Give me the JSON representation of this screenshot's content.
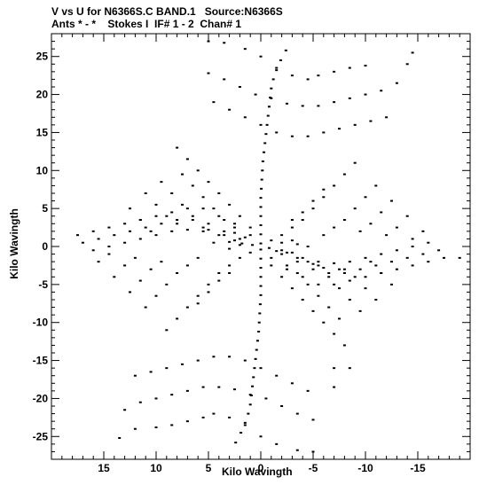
{
  "title_line1": "V vs U for N6366S.C BAND.1   Source:N6366S",
  "title_line2": "Ants * - *    Stokes I  IF# 1 - 2  Chan# 1",
  "chart_data": {
    "type": "scatter",
    "xlabel": "Kilo Wavingth",
    "ylabel": "Kilo Wavingth",
    "xlim": [
      20,
      -20
    ],
    "ylim": [
      -28,
      28
    ],
    "xticks": [
      15,
      10,
      5,
      0,
      -5,
      -10,
      -15
    ],
    "xtick_labels": [
      "15",
      "10",
      "5",
      "0",
      "-5",
      "-10",
      "-15"
    ],
    "yticks": [
      -25,
      -20,
      -15,
      -10,
      -5,
      0,
      5,
      10,
      15,
      20,
      25
    ],
    "ytick_labels": [
      "-25",
      "-20",
      "-15",
      "-10",
      "-5",
      "0",
      "5",
      "10",
      "15",
      "20",
      "25"
    ],
    "grid": false,
    "marker_color": "#000000",
    "points": [
      [
        -2.4,
        25.8
      ],
      [
        -1.9,
        24.5
      ],
      [
        -1.5,
        23.2
      ],
      [
        -1.2,
        22.0
      ],
      [
        -1.0,
        20.8
      ],
      [
        -0.9,
        19.6
      ],
      [
        -0.8,
        18.4
      ],
      [
        -0.7,
        17.2
      ],
      [
        -0.6,
        16.0
      ],
      [
        -0.5,
        14.8
      ],
      [
        -0.4,
        13.6
      ],
      [
        -0.3,
        12.4
      ],
      [
        -0.2,
        11.2
      ],
      [
        -0.15,
        10.0
      ],
      [
        -0.1,
        8.8
      ],
      [
        -0.05,
        7.6
      ],
      [
        0,
        6.4
      ],
      [
        0,
        5.2
      ],
      [
        0,
        4.0
      ],
      [
        0,
        2.8
      ],
      [
        0,
        1.6
      ],
      [
        0,
        0.4
      ],
      [
        2.4,
        -25.8
      ],
      [
        1.9,
        -24.5
      ],
      [
        1.5,
        -23.2
      ],
      [
        1.2,
        -22.0
      ],
      [
        1.0,
        -20.8
      ],
      [
        0.9,
        -19.6
      ],
      [
        0.8,
        -18.4
      ],
      [
        0.7,
        -17.2
      ],
      [
        0.6,
        -16.0
      ],
      [
        0.5,
        -14.8
      ],
      [
        0.4,
        -13.6
      ],
      [
        0.3,
        -12.4
      ],
      [
        0.2,
        -11.2
      ],
      [
        0.15,
        -10.0
      ],
      [
        0.1,
        -8.8
      ],
      [
        0.05,
        -7.6
      ],
      [
        0,
        -6.4
      ],
      [
        0,
        -5.2
      ],
      [
        0,
        -4.0
      ],
      [
        0,
        -2.8
      ],
      [
        0,
        -1.6
      ],
      [
        0,
        -0.4
      ],
      [
        5,
        27
      ],
      [
        3.5,
        26.8
      ],
      [
        1.5,
        26
      ],
      [
        0,
        25
      ],
      [
        -1.5,
        23.5
      ],
      [
        -3,
        22.5
      ],
      [
        -4.5,
        22
      ],
      [
        -5.5,
        22.5
      ],
      [
        -7,
        23
      ],
      [
        -8.5,
        23.5
      ],
      [
        -10,
        23.8
      ],
      [
        5,
        22.8
      ],
      [
        3.5,
        22
      ],
      [
        2,
        21
      ],
      [
        0.5,
        20
      ],
      [
        -1,
        19.5
      ],
      [
        -2.5,
        18.8
      ],
      [
        -4,
        18.5
      ],
      [
        -5.5,
        18.5
      ],
      [
        -7,
        19
      ],
      [
        -8.5,
        19.5
      ],
      [
        -10,
        20
      ],
      [
        -11.5,
        20.5
      ],
      [
        -13,
        21.5
      ],
      [
        -14,
        24
      ],
      [
        -14.5,
        25.5
      ],
      [
        4.5,
        19
      ],
      [
        3,
        18
      ],
      [
        1.5,
        17
      ],
      [
        0,
        16
      ],
      [
        -1.5,
        15
      ],
      [
        -3,
        14.5
      ],
      [
        -4.5,
        14.5
      ],
      [
        -6,
        15
      ],
      [
        -7.5,
        15.5
      ],
      [
        -9,
        16
      ],
      [
        -10.5,
        16.5
      ],
      [
        -12,
        17
      ],
      [
        -5,
        -27
      ],
      [
        -3.5,
        -26.8
      ],
      [
        -1.5,
        -26
      ],
      [
        0,
        -25
      ],
      [
        1.5,
        -23.5
      ],
      [
        3,
        -22.5
      ],
      [
        4.5,
        -22
      ],
      [
        5.5,
        -22.5
      ],
      [
        7,
        -23
      ],
      [
        8.5,
        -23.5
      ],
      [
        10,
        -23.8
      ],
      [
        12,
        -24
      ],
      [
        13.5,
        -25.2
      ],
      [
        -5,
        -22.8
      ],
      [
        -3.5,
        -22
      ],
      [
        -2,
        -21
      ],
      [
        -0.5,
        -20
      ],
      [
        1,
        -19.5
      ],
      [
        2.5,
        -18.8
      ],
      [
        4,
        -18.5
      ],
      [
        5.5,
        -18.5
      ],
      [
        7,
        -19
      ],
      [
        8.5,
        -19.5
      ],
      [
        10,
        -20
      ],
      [
        11.5,
        -20.5
      ],
      [
        13,
        -21.5
      ],
      [
        -4.5,
        -19
      ],
      [
        -3,
        -18
      ],
      [
        -1.5,
        -17
      ],
      [
        0,
        -16
      ],
      [
        1.5,
        -15
      ],
      [
        3,
        -14.5
      ],
      [
        4.5,
        -14.5
      ],
      [
        6,
        -15
      ],
      [
        7.5,
        -15.5
      ],
      [
        9,
        -16
      ],
      [
        10.5,
        -16.5
      ],
      [
        12,
        -17
      ],
      [
        -7,
        -18.5
      ],
      [
        -8.5,
        -16
      ],
      [
        -7,
        -16
      ],
      [
        17.5,
        1.5
      ],
      [
        16,
        2
      ],
      [
        14.5,
        2.5
      ],
      [
        13,
        3
      ],
      [
        11.5,
        3.5
      ],
      [
        10,
        4
      ],
      [
        8.5,
        4.5
      ],
      [
        7,
        5
      ],
      [
        5.5,
        5
      ],
      [
        4,
        4
      ],
      [
        2.5,
        3
      ],
      [
        1,
        1.5
      ],
      [
        17,
        0.5
      ],
      [
        15.5,
        1
      ],
      [
        14,
        1.5
      ],
      [
        12.5,
        2
      ],
      [
        11,
        2.5
      ],
      [
        9.5,
        3
      ],
      [
        8,
        3.5
      ],
      [
        6.5,
        3.5
      ],
      [
        5,
        3
      ],
      [
        3.5,
        2
      ],
      [
        2,
        1
      ],
      [
        16,
        -0.5
      ],
      [
        14.5,
        0
      ],
      [
        13,
        0.5
      ],
      [
        11.5,
        1
      ],
      [
        10,
        1.5
      ],
      [
        8.5,
        2
      ],
      [
        7,
        2.2
      ],
      [
        5.5,
        2
      ],
      [
        4,
        1.5
      ],
      [
        2.5,
        0.8
      ],
      [
        -17.5,
        -1.5
      ],
      [
        -16,
        -2
      ],
      [
        -14.5,
        -2.5
      ],
      [
        -13,
        -3
      ],
      [
        -11.5,
        -3.5
      ],
      [
        -10,
        -4
      ],
      [
        -8.5,
        -4.5
      ],
      [
        -7,
        -5
      ],
      [
        -5.5,
        -5
      ],
      [
        -4,
        -4
      ],
      [
        -2.5,
        -3
      ],
      [
        -1,
        -1.5
      ],
      [
        -19,
        -1.5
      ],
      [
        -17,
        -0.5
      ],
      [
        -15.5,
        -1
      ],
      [
        -14,
        -1.5
      ],
      [
        -12.5,
        -2
      ],
      [
        -11,
        -2.5
      ],
      [
        -9.5,
        -3
      ],
      [
        -8,
        -3.5
      ],
      [
        -6.5,
        -3.5
      ],
      [
        -5,
        -3
      ],
      [
        -3.5,
        -2
      ],
      [
        -2,
        -1
      ],
      [
        -16,
        0.5
      ],
      [
        -14.5,
        0
      ],
      [
        -13,
        -0.5
      ],
      [
        -11.5,
        -1
      ],
      [
        -10,
        -1.5
      ],
      [
        -8.5,
        -2
      ],
      [
        -7,
        -2.2
      ],
      [
        -5.5,
        -2
      ],
      [
        -4,
        -1.5
      ],
      [
        -2.5,
        -0.8
      ],
      [
        8,
        13
      ],
      [
        7,
        11.5
      ],
      [
        6,
        10
      ],
      [
        5,
        8.5
      ],
      [
        4,
        7
      ],
      [
        3,
        5.5
      ],
      [
        2,
        4
      ],
      [
        1,
        2.5
      ],
      [
        7.5,
        9.5
      ],
      [
        6.5,
        8
      ],
      [
        5.5,
        6.5
      ],
      [
        4.5,
        5
      ],
      [
        3.5,
        3.5
      ],
      [
        2.5,
        2.5
      ],
      [
        9.5,
        8.5
      ],
      [
        8.5,
        7
      ],
      [
        7.5,
        5.5
      ],
      [
        6.5,
        4
      ],
      [
        5.5,
        2.5
      ],
      [
        11,
        7
      ],
      [
        10,
        5.5
      ],
      [
        9,
        4
      ],
      [
        8,
        3
      ],
      [
        12.5,
        5
      ],
      [
        11.5,
        3.5
      ],
      [
        10.5,
        2
      ],
      [
        -8,
        -13
      ],
      [
        -7,
        -11.5
      ],
      [
        -6,
        -10
      ],
      [
        -5,
        -8.5
      ],
      [
        -4,
        -7
      ],
      [
        -3,
        -5.5
      ],
      [
        -2,
        -4
      ],
      [
        -1,
        -2.5
      ],
      [
        -7.5,
        -9.5
      ],
      [
        -6.5,
        -8
      ],
      [
        -5.5,
        -6.5
      ],
      [
        -4.5,
        -5
      ],
      [
        -3.5,
        -3.5
      ],
      [
        -2.5,
        -2.5
      ],
      [
        -9.5,
        -8.5
      ],
      [
        -8.5,
        -7
      ],
      [
        -7.5,
        -5.5
      ],
      [
        -6.5,
        -4
      ],
      [
        -5.5,
        -2.5
      ],
      [
        -11,
        -7
      ],
      [
        -10,
        -5.5
      ],
      [
        -9,
        -4
      ],
      [
        -8,
        -3
      ],
      [
        -12.5,
        -5
      ],
      [
        -11.5,
        -3.5
      ],
      [
        -10.5,
        -2
      ],
      [
        -9,
        11
      ],
      [
        -8,
        9.5
      ],
      [
        -7,
        8
      ],
      [
        -6,
        6.5
      ],
      [
        -5,
        5
      ],
      [
        -4,
        3.5
      ],
      [
        -3,
        2.5
      ],
      [
        -2,
        1.5
      ],
      [
        -1,
        0.8
      ],
      [
        -11,
        8
      ],
      [
        -10,
        6.5
      ],
      [
        -9,
        5
      ],
      [
        -8,
        3.5
      ],
      [
        -7,
        2.5
      ],
      [
        -6,
        1.5
      ],
      [
        -12.5,
        6
      ],
      [
        -11.5,
        4.5
      ],
      [
        -10.5,
        3
      ],
      [
        -9.5,
        2
      ],
      [
        -14,
        4
      ],
      [
        -13,
        2.5
      ],
      [
        -12,
        1.5
      ],
      [
        -15.5,
        2
      ],
      [
        -14.5,
        1
      ],
      [
        -6,
        7.5
      ],
      [
        -5,
        6
      ],
      [
        -4,
        4.5
      ],
      [
        -3,
        3.5
      ],
      [
        9,
        -11
      ],
      [
        8,
        -9.5
      ],
      [
        7,
        -8
      ],
      [
        6,
        -6.5
      ],
      [
        5,
        -5
      ],
      [
        4,
        -3.5
      ],
      [
        3,
        -2.5
      ],
      [
        2,
        -1.5
      ],
      [
        1,
        -0.8
      ],
      [
        11,
        -8
      ],
      [
        10,
        -6.5
      ],
      [
        9,
        -5
      ],
      [
        8,
        -3.5
      ],
      [
        7,
        -2.5
      ],
      [
        6,
        -1.5
      ],
      [
        12.5,
        -6
      ],
      [
        11.5,
        -4.5
      ],
      [
        10.5,
        -3
      ],
      [
        9.5,
        -2
      ],
      [
        14,
        -4
      ],
      [
        13,
        -2.5
      ],
      [
        12,
        -1.5
      ],
      [
        15.5,
        -2
      ],
      [
        14.5,
        -1
      ],
      [
        6,
        -7.5
      ],
      [
        5,
        -6
      ],
      [
        4,
        -4.5
      ],
      [
        3,
        -3.5
      ],
      [
        -3,
        0.8
      ],
      [
        -3.5,
        0.3
      ],
      [
        -2,
        0.5
      ],
      [
        -4.5,
        0
      ],
      [
        4.5,
        0.5
      ],
      [
        3,
        -0.3
      ],
      [
        2,
        0.2
      ],
      [
        2.5,
        1.8
      ],
      [
        1.5,
        1.2
      ],
      [
        -1.5,
        -0.6
      ],
      [
        -3.5,
        -1.5
      ],
      [
        -4.5,
        -2
      ],
      [
        -6,
        -2.8
      ],
      [
        5,
        2.2
      ],
      [
        3.5,
        1.5
      ],
      [
        -5,
        -2.3
      ],
      [
        -7.5,
        -3
      ],
      [
        3,
        0.6
      ],
      [
        1.8,
        0.4
      ],
      [
        0.8,
        0.2
      ],
      [
        -0.8,
        -0.2
      ],
      [
        -2,
        -0.5
      ],
      [
        -3,
        -0.8
      ]
    ]
  }
}
